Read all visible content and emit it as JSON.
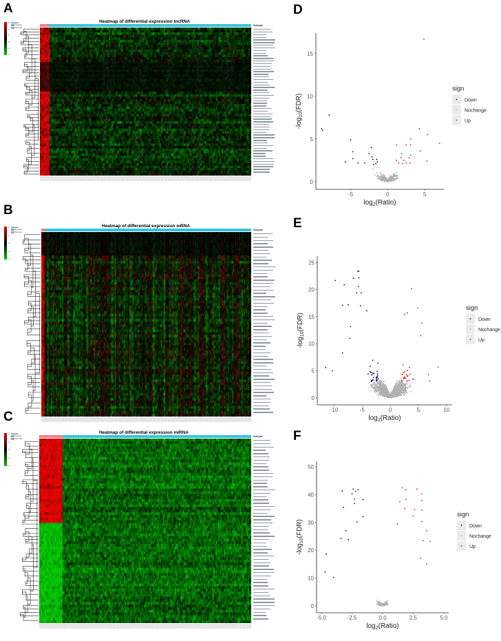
{
  "panels": {
    "A": "A",
    "B": "B",
    "C": "C",
    "D": "D",
    "E": "E",
    "F": "F"
  },
  "heatmaps": [
    {
      "title": "Heatmap of differential expression lncRNA",
      "annotation_label": "Sample",
      "groups": [
        "Cancer",
        "Normal"
      ],
      "colors": {
        "low": "#00c000",
        "mid": "#000000",
        "high": "#e00000",
        "cancer": "#33c4dc",
        "normal": "#f08080"
      },
      "scale_ticks": [
        "3",
        "2",
        "1",
        "0",
        "-1",
        "-2"
      ]
    },
    {
      "title": "Heatmap of differential expression mRNA",
      "annotation_label": "Sample",
      "groups": [
        "Cancer",
        "Normal"
      ],
      "colors": {
        "low": "#00c000",
        "mid": "#000000",
        "high": "#e00000",
        "cancer": "#33c4dc",
        "normal": "#f08080"
      },
      "scale_ticks": [
        "4",
        "2",
        "0",
        "-2",
        "-4"
      ]
    },
    {
      "title": "Heatmap of differential expression miRNA",
      "annotation_label": "Sample",
      "groups": [
        "Cancer",
        "Normal"
      ],
      "colors": {
        "low": "#00c000",
        "mid": "#000000",
        "high": "#e00000",
        "cancer": "#33c4dc",
        "normal": "#f08080"
      },
      "scale_ticks": [
        "4",
        "2",
        "0",
        "-2",
        "-4"
      ]
    }
  ],
  "chart_data": [
    {
      "type": "heatmap",
      "title": "Heatmap of differential expression lncRNA",
      "legend_title": "Sample",
      "legend": [
        "Cancer",
        "Normal"
      ]
    },
    {
      "type": "heatmap",
      "title": "Heatmap of differential expression mRNA",
      "legend_title": "Sample",
      "legend": [
        "Cancer",
        "Normal"
      ]
    },
    {
      "type": "heatmap",
      "title": "Heatmap of differential expression miRNA",
      "legend_title": "Sample",
      "legend": [
        "Cancer",
        "Normal"
      ]
    },
    {
      "type": "scatter",
      "xlabel": "log2(Ratio)",
      "ylabel": "-log10(FDR)",
      "xlim": [
        -9.7,
        7.6
      ],
      "ylim": [
        -0.9,
        17.4
      ],
      "xticks": [
        "-5",
        "0",
        "5"
      ],
      "xtick_values": [
        -5,
        0,
        5
      ],
      "yticks": [
        "0",
        "5",
        "10",
        "15"
      ],
      "ytick_values": [
        0,
        5,
        10,
        15
      ],
      "legend_title": "sign",
      "legend": [
        "Down",
        "Nochange",
        "Up"
      ],
      "legend_placement": "right",
      "colors": {
        "Down": "#000060",
        "Nochange": "#b0b0b0",
        "Up": "#e01010"
      },
      "series": [
        {
          "name": "Down",
          "points": [
            [
              -8.9,
              6.2
            ],
            [
              -8.8,
              6.0
            ],
            [
              -7.9,
              7.8
            ],
            [
              -5.0,
              4.9
            ],
            [
              -5.7,
              2.3
            ],
            [
              -4.7,
              3.5
            ],
            [
              -4.7,
              2.7
            ],
            [
              -4.0,
              2.2
            ],
            [
              -3.1,
              2.2
            ],
            [
              -2.5,
              3.3
            ],
            [
              -2.2,
              4.0
            ],
            [
              -2.1,
              2.9
            ],
            [
              -2.0,
              2.6
            ],
            [
              -1.9,
              2.0
            ],
            [
              -1.6,
              2.1
            ],
            [
              -1.5,
              2.6
            ],
            [
              -1.4,
              2.3
            ]
          ]
        },
        {
          "name": "Up",
          "points": [
            [
              4.9,
              16.7
            ],
            [
              4.3,
              6.2
            ],
            [
              5.4,
              5.5
            ],
            [
              7.0,
              4.5
            ],
            [
              1.2,
              4.3
            ],
            [
              2.5,
              4.3
            ],
            [
              3.1,
              5.0
            ],
            [
              3.1,
              4.3
            ],
            [
              4.4,
              3.6
            ],
            [
              5.3,
              2.4
            ],
            [
              1.9,
              3.3
            ],
            [
              1.8,
              2.8
            ],
            [
              2.2,
              2.5
            ],
            [
              2.9,
              2.8
            ],
            [
              3.1,
              3.1
            ],
            [
              1.5,
              2.2
            ],
            [
              2.0,
              2.1
            ],
            [
              2.5,
              2.2
            ],
            [
              3.0,
              2.2
            ],
            [
              1.2,
              2.5
            ]
          ]
        }
      ]
    },
    {
      "type": "scatter",
      "xlabel": "log2(Ratio)",
      "ylabel": "-log10(FDR)",
      "xlim": [
        -13,
        11
      ],
      "ylim": [
        -1.3,
        26.2
      ],
      "xticks": [
        "-10",
        "-5",
        "0",
        "5",
        "10"
      ],
      "xtick_values": [
        -10,
        -5,
        0,
        5,
        10
      ],
      "yticks": [
        "0",
        "5",
        "10",
        "15",
        "20",
        "25"
      ],
      "ytick_values": [
        0,
        5,
        10,
        15,
        20,
        25
      ],
      "legend_title": "sign",
      "legend": [
        "Down",
        "Nochange",
        "Up"
      ],
      "legend_placement": "right",
      "colors": {
        "Down": "#000060",
        "Nochange": "#b0b0b0",
        "Up": "#e01010"
      },
      "series": [
        {
          "name": "Down",
          "points": [
            [
              -9.8,
              21.7
            ],
            [
              -8.2,
              20.9
            ],
            [
              -5.8,
              23.4
            ],
            [
              -5.6,
              23.4
            ],
            [
              -5.6,
              22.2
            ],
            [
              -6.5,
              22.1
            ],
            [
              -5.7,
              20.6
            ],
            [
              -6.0,
              19.4
            ],
            [
              -5.2,
              19.4
            ],
            [
              -8.5,
              17.1
            ],
            [
              -7.5,
              17.2
            ],
            [
              -5.3,
              17.0
            ],
            [
              -11.5,
              5.6
            ],
            [
              -10.3,
              5.0
            ],
            [
              -8.5,
              8.3
            ],
            [
              -7.1,
              13.2
            ],
            [
              -7.2,
              11.0
            ],
            [
              -4.2,
              16.1
            ]
          ]
        },
        {
          "name": "Up",
          "points": [
            [
              3.8,
              20.2
            ],
            [
              4.9,
              16.6
            ],
            [
              2.5,
              15.4
            ],
            [
              3.0,
              15.7
            ],
            [
              5.6,
              13.8
            ],
            [
              8.5,
              5.7
            ],
            [
              5.4,
              11.5
            ],
            [
              7.0,
              3.1
            ],
            [
              6.8,
              4.3
            ]
          ]
        }
      ]
    },
    {
      "type": "scatter",
      "xlabel": "log2(Ratio)",
      "ylabel": "-log10(FDR)",
      "xlim": [
        -5.4,
        5.4
      ],
      "ylim": [
        -2.5,
        52
      ],
      "xticks": [
        "-5.0",
        "-2.5",
        "0.0",
        "2.5",
        "5.0"
      ],
      "xtick_values": [
        -5,
        -2.5,
        0,
        2.5,
        5
      ],
      "yticks": [
        "0",
        "10",
        "20",
        "30",
        "40",
        "50"
      ],
      "ytick_values": [
        0,
        10,
        20,
        30,
        40,
        50
      ],
      "legend_title": "sign",
      "legend": [
        "Down",
        "Nochange",
        "Up"
      ],
      "legend_placement": "right",
      "colors": {
        "Down": "#000060",
        "Nochange": "#b0b0b0",
        "Up": "#e01010"
      },
      "series": [
        {
          "name": "Down",
          "points": [
            [
              -2.4,
              42.0
            ],
            [
              -2.0,
              41.8
            ],
            [
              -2.2,
              41.2
            ],
            [
              -3.3,
              41.3
            ],
            [
              -2.5,
              40.3
            ],
            [
              -2.3,
              38.4
            ],
            [
              -1.6,
              38.2
            ],
            [
              -2.3,
              36.8
            ],
            [
              -3.2,
              35.4
            ],
            [
              -1.6,
              32.1
            ],
            [
              -2.1,
              30.1
            ],
            [
              -3.0,
              27.0
            ],
            [
              -4.6,
              18.6
            ],
            [
              -4.7,
              12.2
            ],
            [
              -4.0,
              10.2
            ],
            [
              -3.4,
              24.2
            ],
            [
              -2.8,
              23.8
            ]
          ]
        },
        {
          "name": "Up",
          "points": [
            [
              1.6,
              42.5
            ],
            [
              1.9,
              41.8
            ],
            [
              2.8,
              42.0
            ],
            [
              3.2,
              40.3
            ],
            [
              1.9,
              38.3
            ],
            [
              3.2,
              37.9
            ],
            [
              1.4,
              37.4
            ],
            [
              1.8,
              35.0
            ],
            [
              2.6,
              34.6
            ],
            [
              3.2,
              34.4
            ],
            [
              2.5,
              32.3
            ],
            [
              3.2,
              30.3
            ],
            [
              1.2,
              29.4
            ],
            [
              3.6,
              27.0
            ],
            [
              3.9,
              23.2
            ],
            [
              3.3,
              23.5
            ],
            [
              3.1,
              17.1
            ],
            [
              3.6,
              15.0
            ]
          ]
        }
      ]
    }
  ]
}
